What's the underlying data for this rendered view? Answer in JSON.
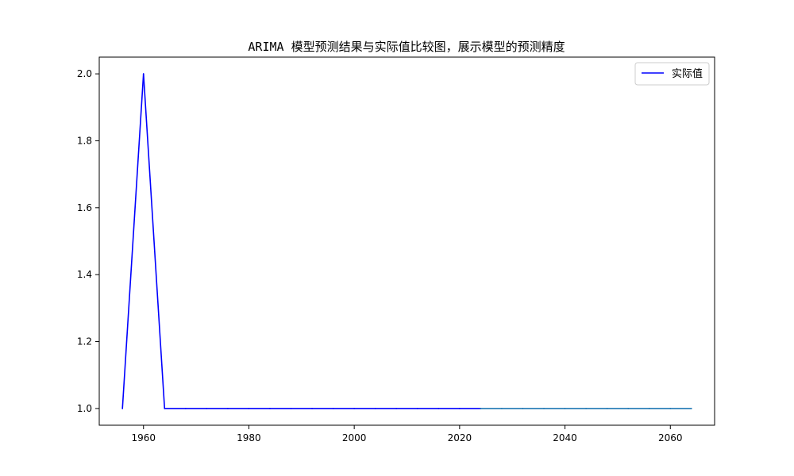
{
  "chart_data": {
    "type": "line",
    "title": "ARIMA 模型预测结果与实际值比较图，展示模型的预测精度",
    "xlabel": "",
    "ylabel": "",
    "xlim": [
      1951.6,
      2068.4
    ],
    "ylim": [
      0.95,
      2.05
    ],
    "x_ticks": [
      1960,
      1980,
      2000,
      2020,
      2040,
      2060
    ],
    "y_ticks": [
      "1.0",
      "1.2",
      "1.4",
      "1.6",
      "1.8",
      "2.0"
    ],
    "grid": false,
    "legend": {
      "position": "upper-right",
      "entries": [
        "实际值"
      ]
    },
    "series": [
      {
        "name": "实际值",
        "color": "#0000ff",
        "x": [
          1956,
          1960,
          1964,
          1968,
          1972,
          1976,
          1980,
          1984,
          1988,
          1992,
          1996,
          2000,
          2004,
          2008,
          2012,
          2016,
          2020,
          2024
        ],
        "y": [
          1.0,
          2.0,
          1.0,
          1.0,
          1.0,
          1.0,
          1.0,
          1.0,
          1.0,
          1.0,
          1.0,
          1.0,
          1.0,
          1.0,
          1.0,
          1.0,
          1.0,
          1.0
        ]
      },
      {
        "color": "#1f77b4",
        "x": [
          2024,
          2028,
          2032,
          2036,
          2040,
          2044,
          2048,
          2052,
          2056,
          2060,
          2064
        ],
        "y": [
          1.0,
          1.0,
          1.0,
          1.0,
          1.0,
          1.0,
          1.0,
          1.0,
          1.0,
          1.0,
          1.0
        ]
      }
    ]
  }
}
